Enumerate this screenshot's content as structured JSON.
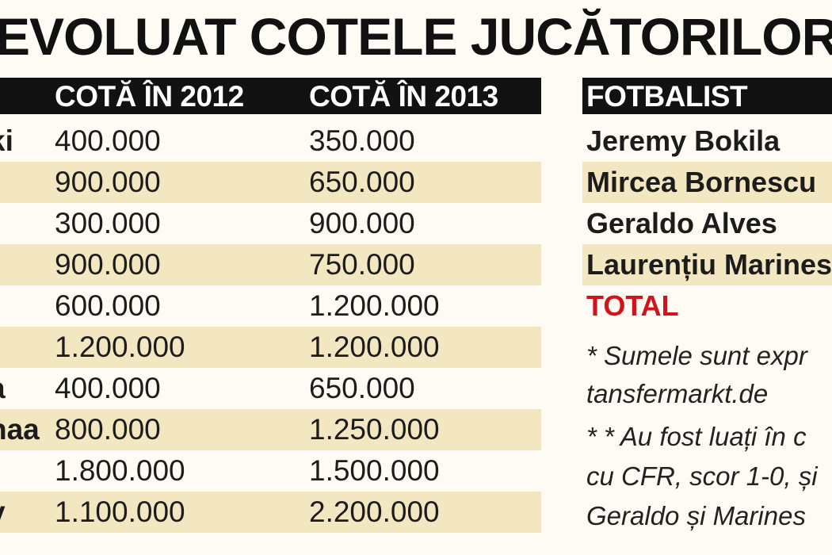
{
  "title": "EVOLUAT COTELE JUCĂTORILOR D",
  "left_table": {
    "headers": {
      "col_2012": "COTĂ ÎN 2012",
      "col_2013": "COTĂ ÎN 2013"
    },
    "rows": [
      {
        "name": "ki",
        "v2012": "400.000",
        "v2013": "350.000"
      },
      {
        "name": "",
        "v2012": "900.000",
        "v2013": "650.000"
      },
      {
        "name": "",
        "v2012": "300.000",
        "v2013": "900.000"
      },
      {
        "name": "",
        "v2012": "900.000",
        "v2013": "750.000"
      },
      {
        "name": "",
        "v2012": "600.000",
        "v2013": "1.200.000"
      },
      {
        "name": "",
        "v2012": "1.200.000",
        "v2013": "1.200.000"
      },
      {
        "name": "a",
        "v2012": "400.000",
        "v2013": "650.000"
      },
      {
        "name": "naa",
        "v2012": "800.000",
        "v2013": "1.250.000"
      },
      {
        "name": "",
        "v2012": "1.800.000",
        "v2013": "1.500.000"
      },
      {
        "name": "v",
        "v2012": "1.100.000",
        "v2013": "2.200.000"
      }
    ]
  },
  "right_table": {
    "header": "FOTBALIST",
    "players": [
      "Jeremy Bokila",
      "Mircea Bornescu",
      "Geraldo Alves",
      "Laurențiu Marines"
    ],
    "total_label": "TOTAL"
  },
  "notes": {
    "line1": "* Sumele sunt expr",
    "line2": "tansfermarkt.de",
    "line3": "* * Au fost luați în c",
    "line4": "cu CFR, scor 1-0, și",
    "line5": "Geraldo și Marines"
  },
  "colors": {
    "header_bg": "#121212",
    "row_shade": "#f3e7c2",
    "total": "#d0141a",
    "page_bg": "#fdfbf3"
  }
}
